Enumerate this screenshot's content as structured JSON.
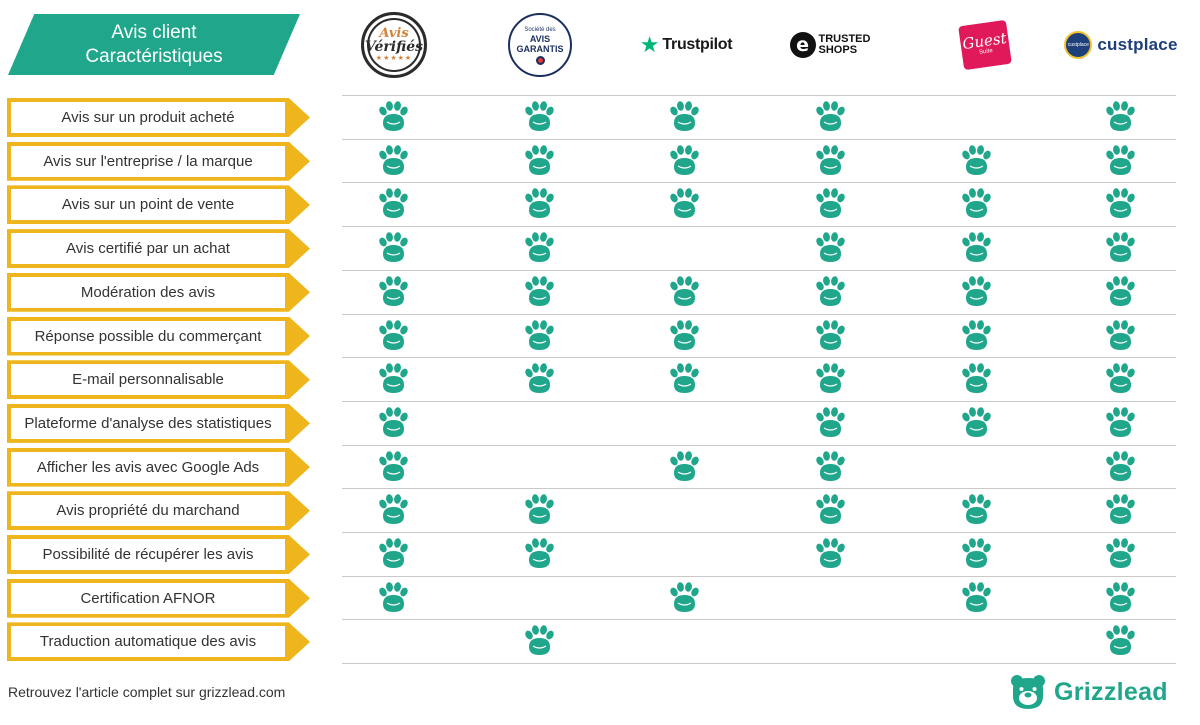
{
  "header": {
    "title_line1": "Avis client",
    "title_line2": "Caractéristiques"
  },
  "colors": {
    "teal": "#1fa68b",
    "gold": "#efb51d",
    "paw": "#1fa68b"
  },
  "logos": {
    "avis_verifies": {
      "line1": "Avis",
      "line2": "Vérifiés",
      "stars": "★★★★★"
    },
    "avis_garantis": {
      "line1": "Société des",
      "line2": "AVIS",
      "line3": "GARANTIS"
    },
    "trustpilot": {
      "name": "Trustpilot"
    },
    "trusted_shops": {
      "mark": "e",
      "line1": "TRUSTED",
      "line2": "SHOPS"
    },
    "guest_suite": {
      "line1": "Guest",
      "line2": "Suite"
    },
    "custplace": {
      "badge": "custplace",
      "name": "custplace"
    }
  },
  "icons": {
    "check": "bear-paw-icon",
    "brand": "bear-head-icon"
  },
  "comparison": {
    "columns": [
      "Avis Vérifiés",
      "Avis Garantis",
      "Trustpilot",
      "Trusted Shops",
      "Guest Suite",
      "Custplace"
    ],
    "rows": [
      {
        "label": "Avis sur un produit acheté",
        "marks": [
          1,
          1,
          1,
          1,
          0,
          1
        ]
      },
      {
        "label": "Avis sur l'entreprise / la marque",
        "marks": [
          1,
          1,
          1,
          1,
          1,
          1
        ]
      },
      {
        "label": "Avis sur un point de vente",
        "marks": [
          1,
          1,
          1,
          1,
          1,
          1
        ]
      },
      {
        "label": "Avis certifié par un achat",
        "marks": [
          1,
          1,
          0,
          1,
          1,
          1
        ]
      },
      {
        "label": "Modération des avis",
        "marks": [
          1,
          1,
          1,
          1,
          1,
          1
        ]
      },
      {
        "label": "Réponse possible du commerçant",
        "marks": [
          1,
          1,
          1,
          1,
          1,
          1
        ]
      },
      {
        "label": "E-mail personnalisable",
        "marks": [
          1,
          1,
          1,
          1,
          1,
          1
        ]
      },
      {
        "label": "Plateforme d'analyse des statistiques",
        "marks": [
          1,
          0,
          0,
          1,
          1,
          1
        ]
      },
      {
        "label": "Afficher les avis avec Google Ads",
        "marks": [
          1,
          0,
          1,
          1,
          0,
          1
        ]
      },
      {
        "label": "Avis propriété du marchand",
        "marks": [
          1,
          1,
          0,
          1,
          1,
          1
        ]
      },
      {
        "label": "Possibilité de récupérer les avis",
        "marks": [
          1,
          1,
          0,
          1,
          1,
          1
        ]
      },
      {
        "label": "Certification AFNOR",
        "marks": [
          1,
          0,
          1,
          0,
          1,
          1
        ]
      },
      {
        "label": "Traduction automatique des avis",
        "marks": [
          0,
          1,
          0,
          0,
          0,
          1
        ]
      }
    ]
  },
  "footer": {
    "text": "Retrouvez l'article complet sur grizzlead.com",
    "brand": "Grizzlead"
  }
}
